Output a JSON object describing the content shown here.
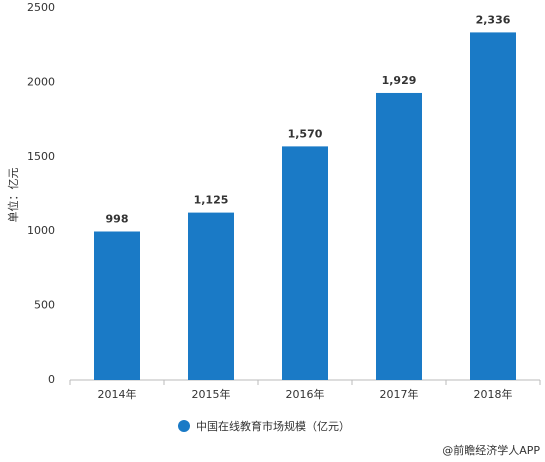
{
  "chart_data": {
    "type": "bar",
    "y_label": "单位：亿元",
    "categories": [
      "2014年",
      "2015年",
      "2016年",
      "2017年",
      "2018年"
    ],
    "series": [
      {
        "name": "中国在线教育市场规模（亿元）",
        "color": "#1a7ac6",
        "values": [
          998,
          1125,
          1570,
          1929,
          2336
        ],
        "value_labels": [
          "998",
          "1,125",
          "1,570",
          "1,929",
          "2,336"
        ]
      }
    ],
    "ylim": [
      0,
      2500
    ],
    "yticks": [
      0,
      500,
      1000,
      1500,
      2000,
      2500
    ],
    "grid": false,
    "legend": "bottom",
    "source": "@前瞻经济学人APP"
  }
}
